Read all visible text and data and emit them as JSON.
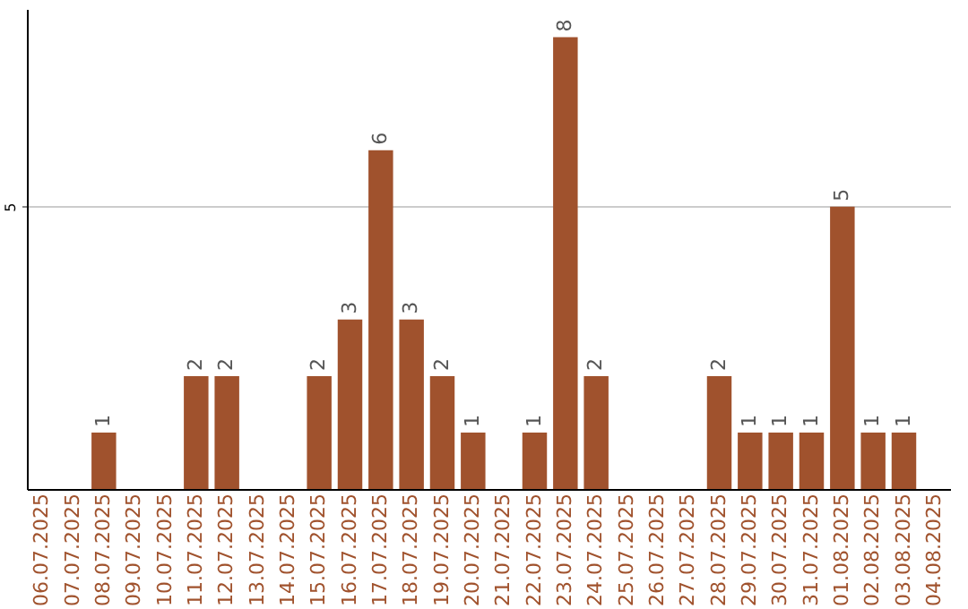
{
  "chart_data": {
    "type": "bar",
    "categories": [
      "06.07.2025",
      "07.07.2025",
      "08.07.2025",
      "09.07.2025",
      "10.07.2025",
      "11.07.2025",
      "12.07.2025",
      "13.07.2025",
      "14.07.2025",
      "15.07.2025",
      "16.07.2025",
      "17.07.2025",
      "18.07.2025",
      "19.07.2025",
      "20.07.2025",
      "21.07.2025",
      "22.07.2025",
      "23.07.2025",
      "24.07.2025",
      "25.07.2025",
      "26.07.2025",
      "27.07.2025",
      "28.07.2025",
      "29.07.2025",
      "30.07.2025",
      "31.07.2025",
      "01.08.2025",
      "02.08.2025",
      "03.08.2025",
      "04.08.2025"
    ],
    "values": [
      0,
      0,
      1,
      0,
      0,
      2,
      2,
      0,
      0,
      2,
      3,
      6,
      3,
      2,
      1,
      0,
      1,
      8,
      2,
      0,
      0,
      0,
      2,
      1,
      1,
      1,
      5,
      1,
      1,
      0
    ],
    "value_labels": [
      null,
      null,
      "1",
      null,
      null,
      "2",
      "2",
      null,
      null,
      "2",
      "3",
      "6",
      "3",
      "2",
      "1",
      null,
      "1",
      "8",
      "2",
      null,
      null,
      null,
      "2",
      "1",
      "1",
      "1",
      "5",
      "1",
      "1",
      null
    ],
    "color": "#a0522d",
    "ylim": [
      0,
      8.5
    ],
    "yticks": [
      5
    ],
    "grid": "y"
  }
}
